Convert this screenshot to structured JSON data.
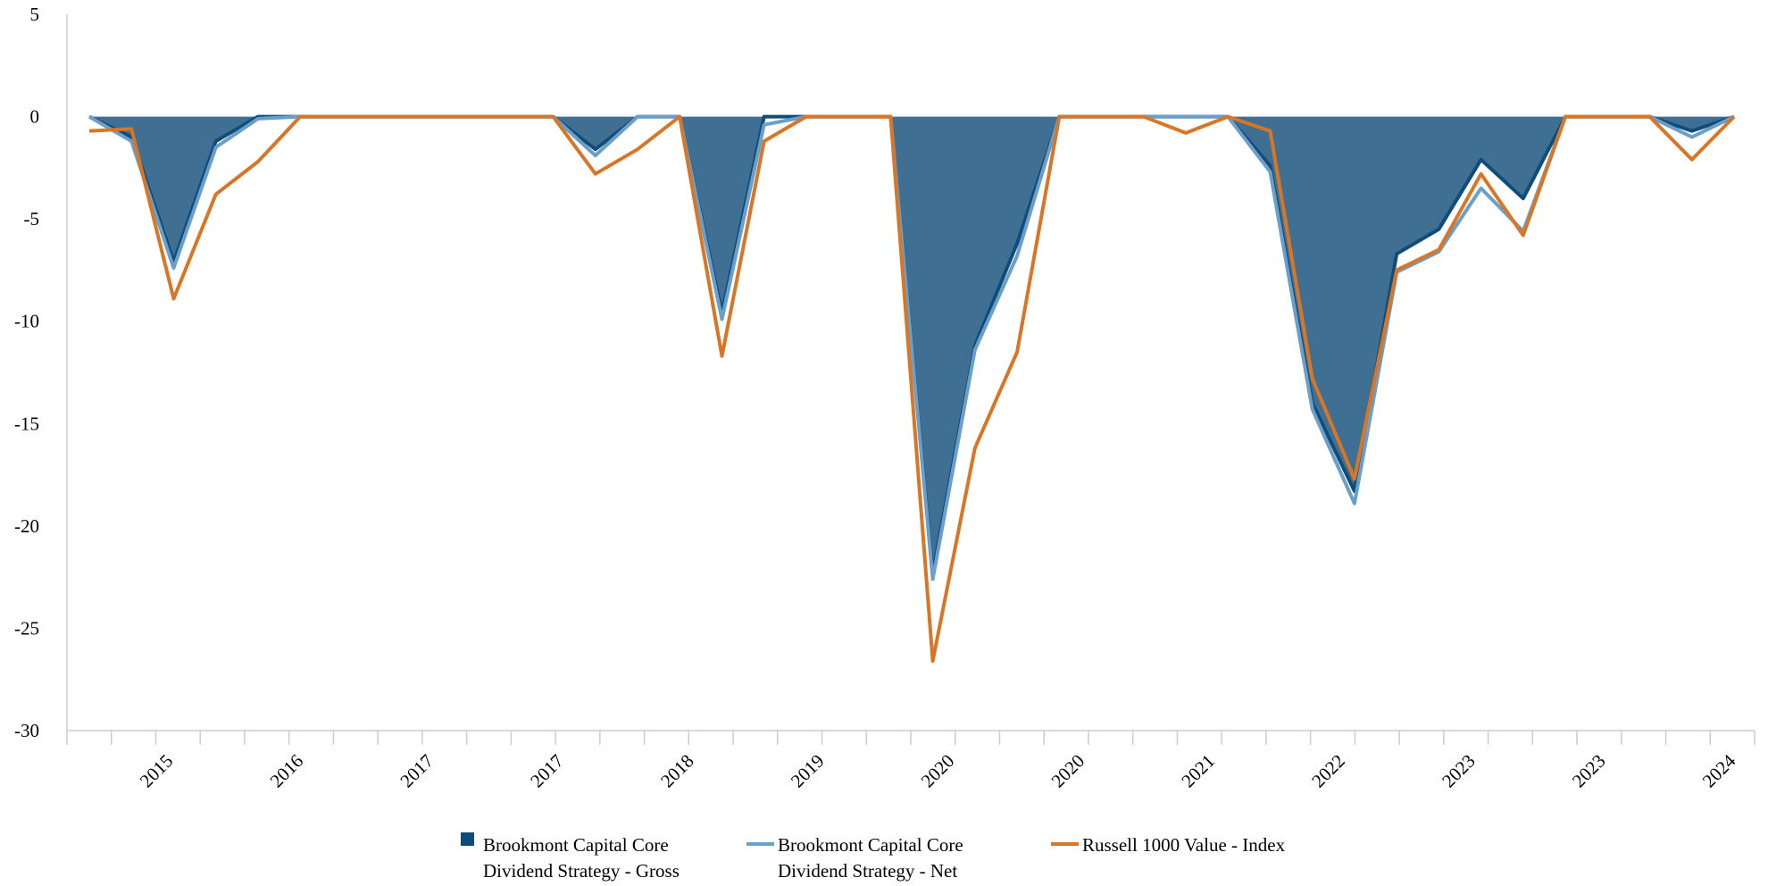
{
  "chart_data": {
    "type": "area",
    "title": "",
    "xlabel": "",
    "ylabel": "",
    "ylim": [
      -30,
      5
    ],
    "yticks": [
      5,
      0,
      -5,
      -10,
      -15,
      -20,
      -25,
      -30
    ],
    "x_tick_labels": [
      "2015",
      "2016",
      "2017",
      "2017",
      "2018",
      "2019",
      "2020",
      "2020",
      "2021",
      "2022",
      "2023",
      "2023",
      "2024"
    ],
    "grid": false,
    "legend_position": "bottom",
    "series": [
      {
        "name": "Brookmont Capital Core Dividend Strategy - Gross",
        "render": "area",
        "color": "#0f4c79",
        "fill": "#3f6f92",
        "values": [
          0,
          -1.0,
          -7.1,
          -1.2,
          0,
          0,
          0,
          0,
          0,
          0,
          0,
          0,
          -1.6,
          0,
          0,
          -9.6,
          0,
          0,
          0,
          0,
          -22.3,
          -11.2,
          -6.2,
          0,
          0,
          0,
          0,
          0,
          -2.4,
          -14.0,
          -18.3,
          -6.7,
          -5.5,
          -2.1,
          -4.0,
          0,
          0,
          0,
          -0.7,
          0
        ]
      },
      {
        "name": "Brookmont Capital Core Dividend Strategy - Net",
        "render": "line",
        "color": "#6a9fc9",
        "values": [
          0,
          -1.2,
          -7.4,
          -1.5,
          -0.1,
          0,
          0,
          0,
          0,
          0,
          0,
          0,
          -1.9,
          0,
          0,
          -9.9,
          -0.4,
          0,
          0,
          0,
          -22.6,
          -11.4,
          -6.8,
          0,
          0,
          0,
          0,
          0,
          -2.7,
          -14.3,
          -18.9,
          -7.6,
          -6.6,
          -3.5,
          -5.6,
          0,
          0,
          0,
          -1.0,
          0
        ]
      },
      {
        "name": "Russell 1000 Value - Index",
        "render": "line",
        "color": "#d97626",
        "values": [
          -0.7,
          -0.6,
          -8.9,
          -3.8,
          -2.2,
          0,
          0,
          0,
          0,
          0,
          0,
          0,
          -2.8,
          -1.6,
          0,
          -11.7,
          -1.2,
          0,
          0,
          0,
          -26.6,
          -16.2,
          -11.5,
          0,
          0,
          0,
          -0.8,
          0,
          -0.7,
          -12.8,
          -17.7,
          -7.5,
          -6.5,
          -2.8,
          -5.8,
          0,
          0,
          0,
          -2.1,
          0
        ]
      }
    ],
    "legend": [
      {
        "line1": "Brookmont Capital Core",
        "line2": "Dividend Strategy - Gross",
        "swatch": "square",
        "color": "#0f4c79"
      },
      {
        "line1": "Brookmont Capital Core",
        "line2": "Dividend Strategy - Net",
        "swatch": "line",
        "color": "#6a9fc9"
      },
      {
        "line1": "Russell 1000 Value - Index",
        "line2": "",
        "swatch": "line",
        "color": "#d97626"
      }
    ]
  }
}
